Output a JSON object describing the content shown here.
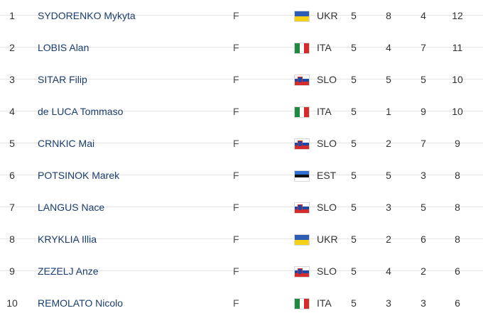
{
  "rows": [
    {
      "rank": "1",
      "name": "SYDORENKO Mykyta",
      "pos": "F",
      "nat": "UKR",
      "flag": "ukraine-flag-icon",
      "gp": "5",
      "g": "8",
      "a": "4",
      "pts": "12"
    },
    {
      "rank": "2",
      "name": "LOBIS Alan",
      "pos": "F",
      "nat": "ITA",
      "flag": "italy-flag-icon",
      "gp": "5",
      "g": "4",
      "a": "7",
      "pts": "11"
    },
    {
      "rank": "3",
      "name": "SITAR Filip",
      "pos": "F",
      "nat": "SLO",
      "flag": "slovenia-flag-icon",
      "gp": "5",
      "g": "5",
      "a": "5",
      "pts": "10"
    },
    {
      "rank": "4",
      "name": "de LUCA Tommaso",
      "pos": "F",
      "nat": "ITA",
      "flag": "italy-flag-icon",
      "gp": "5",
      "g": "1",
      "a": "9",
      "pts": "10"
    },
    {
      "rank": "5",
      "name": "CRNKIC Mai",
      "pos": "F",
      "nat": "SLO",
      "flag": "slovenia-flag-icon",
      "gp": "5",
      "g": "2",
      "a": "7",
      "pts": "9"
    },
    {
      "rank": "6",
      "name": "POTSINOK Marek",
      "pos": "F",
      "nat": "EST",
      "flag": "estonia-flag-icon",
      "gp": "5",
      "g": "5",
      "a": "3",
      "pts": "8"
    },
    {
      "rank": "7",
      "name": "LANGUS Nace",
      "pos": "F",
      "nat": "SLO",
      "flag": "slovenia-flag-icon",
      "gp": "5",
      "g": "3",
      "a": "5",
      "pts": "8"
    },
    {
      "rank": "8",
      "name": "KRYKLIA Illia",
      "pos": "F",
      "nat": "UKR",
      "flag": "ukraine-flag-icon",
      "gp": "5",
      "g": "2",
      "a": "6",
      "pts": "8"
    },
    {
      "rank": "9",
      "name": "ZEZELJ Anze",
      "pos": "F",
      "nat": "SLO",
      "flag": "slovenia-flag-icon",
      "gp": "5",
      "g": "4",
      "a": "2",
      "pts": "6"
    },
    {
      "rank": "10",
      "name": "REMOLATO Nicolo",
      "pos": "F",
      "nat": "ITA",
      "flag": "italy-flag-icon",
      "gp": "5",
      "g": "3",
      "a": "3",
      "pts": "6"
    }
  ],
  "colors": {
    "player_link": "#1a3d6e",
    "row_divider": "#e5e5e5"
  }
}
